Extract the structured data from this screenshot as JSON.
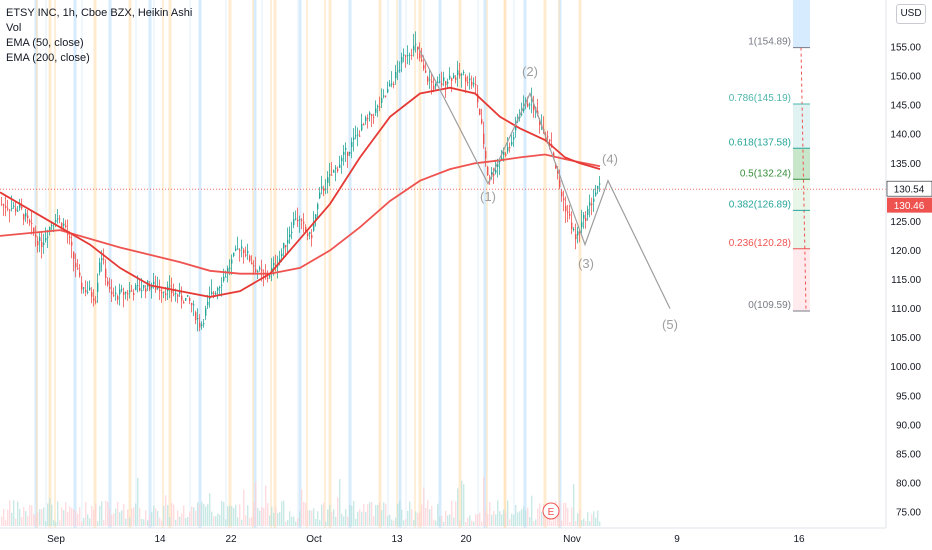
{
  "legend": {
    "title": "ETSY INC, 1h, Cboe BZX, Heikin Ashi",
    "vol": "Vol",
    "ema50": "EMA (50, close)",
    "ema200": "EMA (200, close)"
  },
  "currency_button": "USD",
  "colors": {
    "up": "#26a69a",
    "down": "#ef5350",
    "ema50": "#e53935",
    "ema200": "#ef5350",
    "wave": "#9e9e9e",
    "price_line": "#ef5350"
  },
  "chart_data": {
    "type": "candlestick",
    "y_range": [
      73.5,
      160
    ],
    "y_ticks": [
      155,
      150,
      145,
      140,
      135,
      130,
      125,
      120,
      115,
      110,
      105,
      100,
      95,
      90,
      85,
      80,
      75
    ],
    "x_ticks": [
      "Sep",
      "14",
      "22",
      "Oct",
      "13",
      "20",
      "Nov",
      "9",
      "16"
    ],
    "price_labels": [
      {
        "value": 130.54,
        "text": "130.54",
        "color": "#131722"
      },
      {
        "value": 130.46,
        "text": "130.46",
        "color": "#ef5350"
      }
    ],
    "fibonacci": [
      {
        "label": "1(154.89)",
        "value": 154.89,
        "color": "#787b86"
      },
      {
        "label": "0.786(145.19)",
        "value": 145.19,
        "color": "#4db6ac"
      },
      {
        "label": "0.618(137.58)",
        "value": 137.58,
        "color": "#26a69a"
      },
      {
        "label": "0.5(132.24)",
        "value": 132.24,
        "color": "#388e3c"
      },
      {
        "label": "0.382(126.89)",
        "value": 126.89,
        "color": "#26a69a"
      },
      {
        "label": "0.236(120.28)",
        "value": 120.28,
        "color": "#ef5350"
      },
      {
        "label": "0(109.59)",
        "value": 109.59,
        "color": "#787b86"
      }
    ],
    "elliott_waves": [
      "(1)",
      "(2)",
      "(3)",
      "(4)",
      "(5)"
    ],
    "earnings_marker": "E",
    "price_path": [
      [
        0,
        128
      ],
      [
        20,
        127
      ],
      [
        40,
        121
      ],
      [
        55,
        126
      ],
      [
        65,
        124
      ],
      [
        80,
        114
      ],
      [
        95,
        112
      ],
      [
        100,
        120
      ],
      [
        110,
        112
      ],
      [
        130,
        113
      ],
      [
        150,
        114
      ],
      [
        170,
        113
      ],
      [
        190,
        111
      ],
      [
        200,
        107
      ],
      [
        210,
        112
      ],
      [
        225,
        116
      ],
      [
        240,
        121
      ],
      [
        255,
        117
      ],
      [
        265,
        115
      ],
      [
        280,
        119
      ],
      [
        295,
        126
      ],
      [
        310,
        122
      ],
      [
        320,
        130
      ],
      [
        335,
        134
      ],
      [
        350,
        138
      ],
      [
        365,
        142
      ],
      [
        380,
        145
      ],
      [
        395,
        150
      ],
      [
        405,
        154
      ],
      [
        415,
        155
      ],
      [
        425,
        150
      ],
      [
        435,
        148
      ],
      [
        450,
        150
      ],
      [
        465,
        150
      ],
      [
        475,
        148
      ],
      [
        482,
        140
      ],
      [
        488,
        132
      ],
      [
        500,
        136
      ],
      [
        510,
        138
      ],
      [
        520,
        144
      ],
      [
        530,
        146
      ],
      [
        540,
        142
      ],
      [
        550,
        139
      ],
      [
        560,
        130
      ],
      [
        568,
        126
      ],
      [
        575,
        122
      ],
      [
        585,
        126
      ],
      [
        595,
        130
      ],
      [
        600,
        131
      ]
    ],
    "ema50_path": [
      [
        0,
        130
      ],
      [
        30,
        127
      ],
      [
        60,
        124
      ],
      [
        90,
        121
      ],
      [
        120,
        117
      ],
      [
        150,
        114
      ],
      [
        180,
        113
      ],
      [
        210,
        112
      ],
      [
        240,
        113
      ],
      [
        270,
        116
      ],
      [
        300,
        122
      ],
      [
        330,
        128
      ],
      [
        360,
        136
      ],
      [
        390,
        143
      ],
      [
        420,
        147
      ],
      [
        450,
        148
      ],
      [
        475,
        147
      ],
      [
        500,
        143
      ],
      [
        520,
        141
      ],
      [
        545,
        139
      ],
      [
        565,
        136
      ],
      [
        580,
        135
      ],
      [
        600,
        134
      ]
    ],
    "ema200_path": [
      [
        0,
        122.5
      ],
      [
        60,
        123.5
      ],
      [
        120,
        120.5
      ],
      [
        180,
        118
      ],
      [
        210,
        116.5
      ],
      [
        240,
        116
      ],
      [
        270,
        116
      ],
      [
        300,
        117
      ],
      [
        330,
        120
      ],
      [
        360,
        124
      ],
      [
        390,
        128.5
      ],
      [
        420,
        132
      ],
      [
        450,
        134
      ],
      [
        475,
        135
      ],
      [
        500,
        135.5
      ],
      [
        520,
        136
      ],
      [
        545,
        136.5
      ],
      [
        570,
        135.5
      ],
      [
        600,
        134.5
      ]
    ],
    "vertical_guides": [
      {
        "x": 36,
        "color": "#bbdefb"
      },
      {
        "x": 50,
        "color": "#ffe0b2"
      },
      {
        "x": 75,
        "color": "#bbdefb"
      },
      {
        "x": 95,
        "color": "#ffe0b2"
      },
      {
        "x": 110,
        "color": "#bbdefb"
      },
      {
        "x": 130,
        "color": "#ffe0b2"
      },
      {
        "x": 150,
        "color": "#bbdefb"
      },
      {
        "x": 170,
        "color": "#ffe0b2"
      },
      {
        "x": 200,
        "color": "#bbdefb"
      },
      {
        "x": 230,
        "color": "#ffe0b2"
      },
      {
        "x": 255,
        "color": "#bbdefb"
      },
      {
        "x": 275,
        "color": "#ffe0b2"
      },
      {
        "x": 300,
        "color": "#bbdefb"
      },
      {
        "x": 330,
        "color": "#ffe0b2"
      },
      {
        "x": 350,
        "color": "#bbdefb"
      },
      {
        "x": 380,
        "color": "#ffe0b2"
      },
      {
        "x": 400,
        "color": "#bbdefb"
      },
      {
        "x": 420,
        "color": "#ffe0b2"
      },
      {
        "x": 440,
        "color": "#bbdefb"
      },
      {
        "x": 460,
        "color": "#ffe0b2"
      },
      {
        "x": 485,
        "color": "#bbdefb"
      },
      {
        "x": 505,
        "color": "#ffe0b2"
      },
      {
        "x": 525,
        "color": "#bbdefb"
      },
      {
        "x": 545,
        "color": "#ffe0b2"
      },
      {
        "x": 560,
        "color": "#bbdefb"
      },
      {
        "x": 580,
        "color": "#ffe0b2"
      }
    ]
  }
}
